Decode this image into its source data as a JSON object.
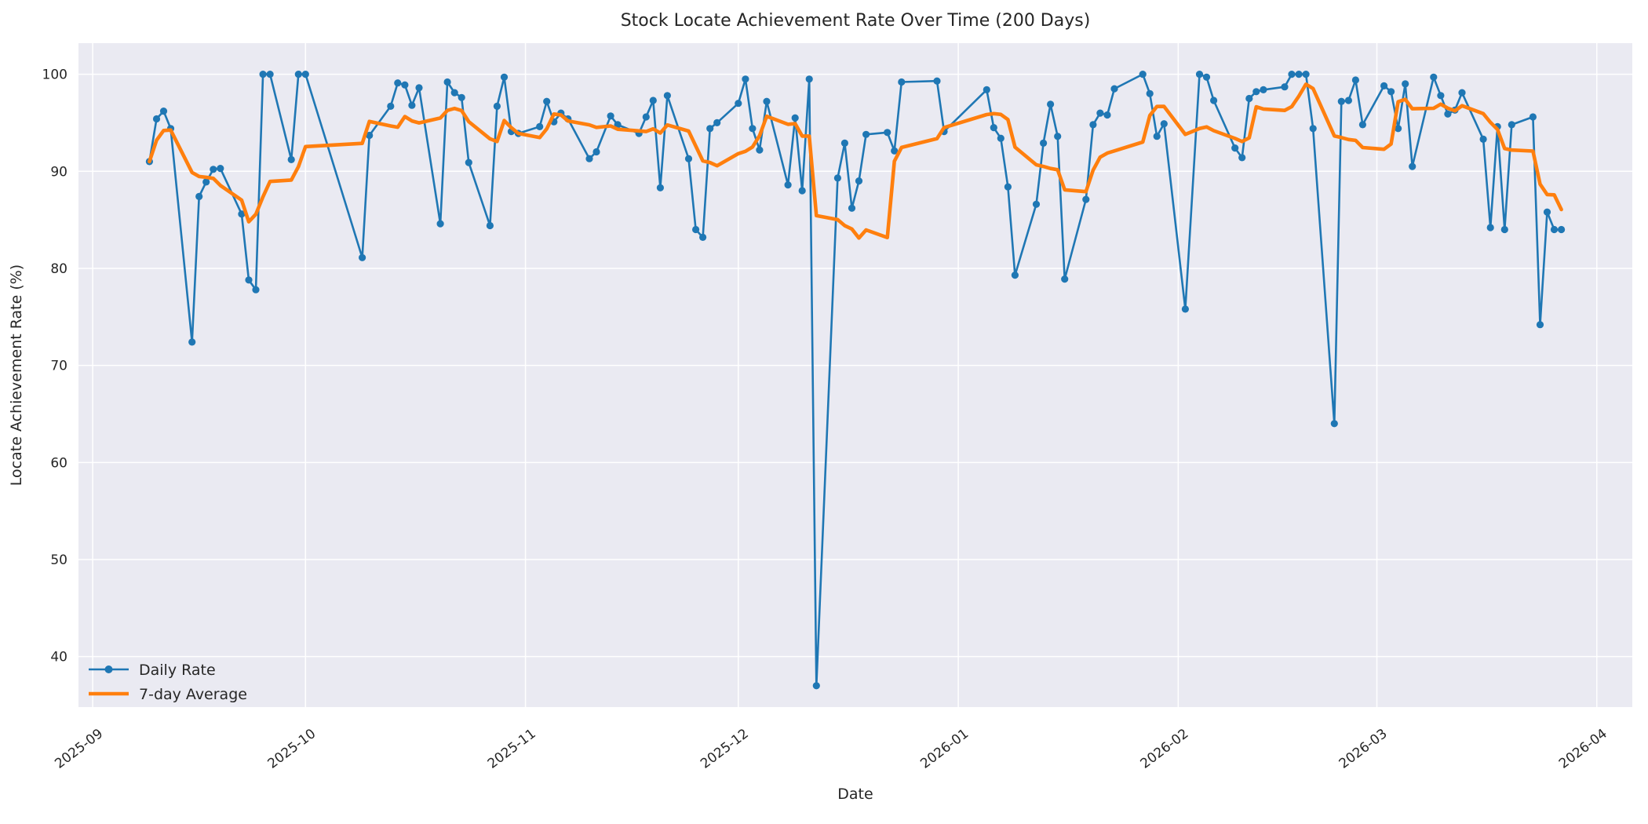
{
  "chart_data": {
    "type": "line",
    "title": "Stock Locate Achievement Rate Over Time (200 Days)",
    "xlabel": "Date",
    "ylabel": "Locate Achievement Rate (%)",
    "grid": true,
    "legend_position": "lower left",
    "x_tick_labels": [
      "2025-09",
      "2025-10",
      "2025-11",
      "2025-12",
      "2026-01",
      "2026-02",
      "2026-03",
      "2026-04"
    ],
    "x_tick_dates": [
      "2025-09-01",
      "2025-10-01",
      "2025-11-01",
      "2025-12-01",
      "2026-01-01",
      "2026-02-01",
      "2026-03-01",
      "2026-04-01"
    ],
    "y_ticks": [
      40,
      50,
      60,
      70,
      80,
      90,
      100
    ],
    "ylim": [
      34.8,
      103.2
    ],
    "xlim": [
      "2025-08-30",
      "2026-04-06"
    ],
    "colors": {
      "daily_rate": "#1f77b4",
      "seven_day_average": "#ff7f0e",
      "plot_background": "#eaeaf2",
      "gridline": "#ffffff",
      "text": "#262626"
    },
    "x": [
      "2025-09-09",
      "2025-09-10",
      "2025-09-11",
      "2025-09-12",
      "2025-09-15",
      "2025-09-16",
      "2025-09-17",
      "2025-09-18",
      "2025-09-19",
      "2025-09-22",
      "2025-09-23",
      "2025-09-24",
      "2025-09-25",
      "2025-09-26",
      "2025-09-29",
      "2025-09-30",
      "2025-10-01",
      "2025-10-09",
      "2025-10-10",
      "2025-10-13",
      "2025-10-14",
      "2025-10-15",
      "2025-10-16",
      "2025-10-17",
      "2025-10-20",
      "2025-10-21",
      "2025-10-22",
      "2025-10-23",
      "2025-10-24",
      "2025-10-27",
      "2025-10-28",
      "2025-10-29",
      "2025-10-30",
      "2025-10-31",
      "2025-11-03",
      "2025-11-04",
      "2025-11-05",
      "2025-11-06",
      "2025-11-07",
      "2025-11-10",
      "2025-11-11",
      "2025-11-13",
      "2025-11-14",
      "2025-11-17",
      "2025-11-18",
      "2025-11-19",
      "2025-11-20",
      "2025-11-21",
      "2025-11-24",
      "2025-11-25",
      "2025-11-26",
      "2025-11-27",
      "2025-11-28",
      "2025-12-01",
      "2025-12-02",
      "2025-12-03",
      "2025-12-04",
      "2025-12-05",
      "2025-12-08",
      "2025-12-09",
      "2025-12-10",
      "2025-12-11",
      "2025-12-12",
      "2025-12-15",
      "2025-12-16",
      "2025-12-17",
      "2025-12-18",
      "2025-12-19",
      "2025-12-22",
      "2025-12-23",
      "2025-12-24",
      "2025-12-29",
      "2025-12-30",
      "2026-01-05",
      "2026-01-06",
      "2026-01-07",
      "2026-01-08",
      "2026-01-09",
      "2026-01-12",
      "2026-01-13",
      "2026-01-14",
      "2026-01-15",
      "2026-01-16",
      "2026-01-19",
      "2026-01-20",
      "2026-01-21",
      "2026-01-22",
      "2026-01-23",
      "2026-01-27",
      "2026-01-28",
      "2026-01-29",
      "2026-01-30",
      "2026-02-02",
      "2026-02-04",
      "2026-02-05",
      "2026-02-06",
      "2026-02-09",
      "2026-02-10",
      "2026-02-11",
      "2026-02-12",
      "2026-02-13",
      "2026-02-16",
      "2026-02-17",
      "2026-02-18",
      "2026-02-19",
      "2026-02-20",
      "2026-02-23",
      "2026-02-24",
      "2026-02-25",
      "2026-02-26",
      "2026-02-27",
      "2026-03-02",
      "2026-03-03",
      "2026-03-04",
      "2026-03-05",
      "2026-03-06",
      "2026-03-09",
      "2026-03-10",
      "2026-03-11",
      "2026-03-12",
      "2026-03-13",
      "2026-03-16",
      "2026-03-17",
      "2026-03-18",
      "2026-03-19",
      "2026-03-20",
      "2026-03-23",
      "2026-03-24",
      "2026-03-25",
      "2026-03-26",
      "2026-03-27"
    ],
    "series": [
      {
        "name": "Daily Rate",
        "color": "#1f77b4",
        "marker": "circle",
        "values": [
          91.0,
          95.4,
          96.2,
          94.4,
          72.4,
          87.4,
          88.9,
          90.2,
          90.3,
          85.6,
          78.8,
          77.8,
          100.0,
          100.0,
          91.2,
          100.0,
          100.0,
          81.1,
          93.7,
          96.7,
          99.1,
          98.9,
          96.8,
          98.6,
          84.6,
          99.2,
          98.1,
          97.6,
          90.9,
          84.4,
          96.7,
          99.7,
          94.1,
          93.9,
          94.6,
          97.2,
          95.1,
          96.0,
          95.4,
          91.3,
          92.0,
          95.7,
          94.8,
          93.9,
          95.6,
          97.3,
          88.3,
          97.8,
          91.3,
          84.0,
          83.2,
          94.4,
          95.0,
          97.0,
          99.5,
          94.4,
          92.2,
          97.2,
          88.6,
          95.5,
          88.0,
          99.5,
          37.0,
          89.3,
          92.9,
          86.2,
          89.0,
          93.8,
          94.0,
          92.1,
          99.2,
          99.3,
          94.1,
          98.4,
          94.5,
          93.4,
          88.4,
          79.3,
          86.6,
          92.9,
          96.9,
          93.6,
          78.9,
          87.1,
          94.8,
          96.0,
          95.8,
          98.5,
          100.0,
          98.0,
          93.6,
          94.9,
          75.8,
          100.0,
          99.7,
          97.3,
          92.4,
          91.4,
          97.5,
          98.2,
          98.4,
          98.7,
          100.0,
          100.0,
          100.0,
          94.4,
          64.0,
          97.2,
          97.3,
          99.4,
          94.8,
          98.8,
          98.2,
          94.4,
          99.0,
          90.5,
          99.7,
          97.8,
          95.9,
          96.3,
          98.1,
          93.3,
          84.2,
          94.6,
          84.0,
          94.8,
          95.6,
          74.2,
          85.8,
          84.0,
          84.0
        ]
      },
      {
        "name": "7-day Average",
        "color": "#ff7f0e",
        "marker": "none",
        "derivation": "7-point rolling mean of Daily Rate (min_periods=1)"
      }
    ]
  }
}
